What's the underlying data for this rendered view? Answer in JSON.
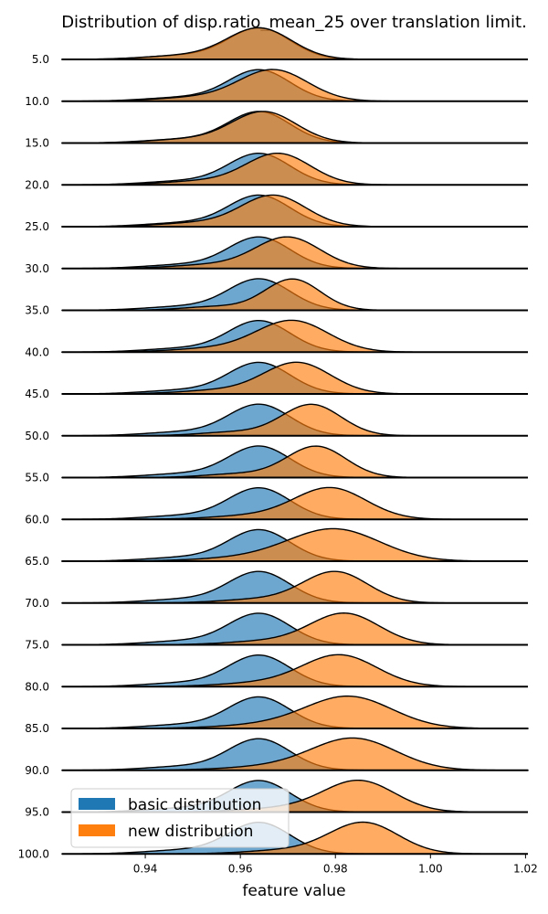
{
  "chart_data": {
    "type": "ridgeline",
    "title": "Distribution of disp.ratio_mean_25 over translation limit.",
    "xlabel": "feature value",
    "xlim": [
      0.9225,
      1.0205
    ],
    "xticks": [
      0.94,
      0.96,
      0.98,
      1.0,
      1.02
    ],
    "xtick_labels": [
      "0.94",
      "0.96",
      "0.98",
      "1.00",
      "1.02"
    ],
    "legend": {
      "placement": "lower-left",
      "items": [
        "basic distribution",
        "new distribution"
      ]
    },
    "colors": {
      "basic": "#1f77b4",
      "new": "#ff7f0e"
    },
    "basic_shape": {
      "mu": 0.964,
      "sigma": 0.0065,
      "tail_mu": 0.948,
      "tail_sigma": 0.008,
      "tail_weight": 0.12
    },
    "rows": [
      {
        "label": "5.0",
        "new_mu": 0.964,
        "new_sigma": 0.0068
      },
      {
        "label": "10.0",
        "new_mu": 0.967,
        "new_sigma": 0.0072
      },
      {
        "label": "15.0",
        "new_mu": 0.965,
        "new_sigma": 0.0068
      },
      {
        "label": "20.0",
        "new_mu": 0.968,
        "new_sigma": 0.0068
      },
      {
        "label": "25.0",
        "new_mu": 0.967,
        "new_sigma": 0.0068
      },
      {
        "label": "30.0",
        "new_mu": 0.97,
        "new_sigma": 0.0068
      },
      {
        "label": "35.0",
        "new_mu": 0.971,
        "new_sigma": 0.0058
      },
      {
        "label": "40.0",
        "new_mu": 0.971,
        "new_sigma": 0.0075
      },
      {
        "label": "45.0",
        "new_mu": 0.972,
        "new_sigma": 0.007
      },
      {
        "label": "50.0",
        "new_mu": 0.975,
        "new_sigma": 0.0062
      },
      {
        "label": "55.0",
        "new_mu": 0.976,
        "new_sigma": 0.0062
      },
      {
        "label": "60.0",
        "new_mu": 0.979,
        "new_sigma": 0.0075
      },
      {
        "label": "65.0",
        "new_mu": 0.98,
        "new_sigma": 0.0095
      },
      {
        "label": "70.0",
        "new_mu": 0.98,
        "new_sigma": 0.0068
      },
      {
        "label": "75.0",
        "new_mu": 0.982,
        "new_sigma": 0.0072
      },
      {
        "label": "80.0",
        "new_mu": 0.981,
        "new_sigma": 0.0078
      },
      {
        "label": "85.0",
        "new_mu": 0.983,
        "new_sigma": 0.009
      },
      {
        "label": "90.0",
        "new_mu": 0.984,
        "new_sigma": 0.0088
      },
      {
        "label": "95.0",
        "new_mu": 0.985,
        "new_sigma": 0.0075
      },
      {
        "label": "100.0",
        "new_mu": 0.986,
        "new_sigma": 0.0072
      }
    ]
  }
}
